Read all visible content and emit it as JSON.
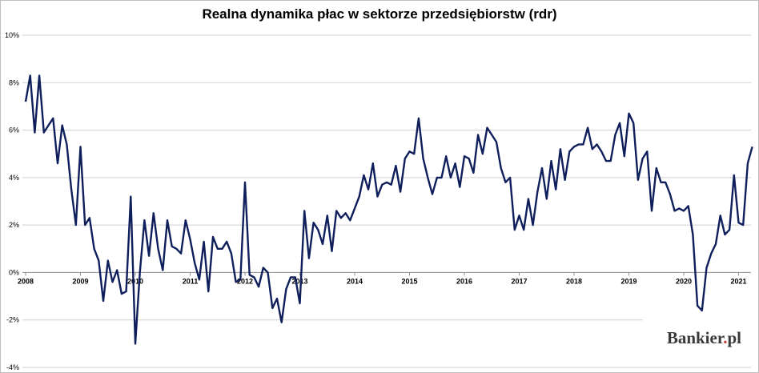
{
  "chart_data": {
    "type": "line",
    "title": "Realna dynamika płac w sektorze przedsiębiorstw (rdr)",
    "xlabel": "",
    "ylabel": "",
    "ylim": [
      -4,
      10
    ],
    "y_ticks": [
      "10%",
      "8%",
      "6%",
      "4%",
      "2%",
      "0%",
      "-2%",
      "-4%"
    ],
    "y_tick_values": [
      10,
      8,
      6,
      4,
      2,
      0,
      -2,
      -4
    ],
    "x_ticks": [
      "2008",
      "2009",
      "2010",
      "2011",
      "2012",
      "2013",
      "2014",
      "2015",
      "2016",
      "2017",
      "2018",
      "2019",
      "2020",
      "2021"
    ],
    "x_start": "2008-01",
    "grid": "horizontal",
    "legend": "none",
    "line_color": "#0f1f5c",
    "series": [
      {
        "values": [
          7.2,
          8.3,
          5.9,
          8.3,
          5.9,
          6.2,
          6.5,
          4.6,
          6.2,
          5.4,
          3.5,
          2.0,
          5.3,
          2.0,
          2.3,
          1.0,
          0.5,
          -1.2,
          0.5,
          -0.4,
          0.1,
          -0.9,
          -0.8,
          3.2,
          -3.0,
          0.0,
          2.2,
          0.7,
          2.5,
          1.0,
          0.1,
          2.2,
          1.1,
          1.0,
          0.8,
          2.2,
          1.4,
          0.4,
          -0.3,
          1.3,
          -0.8,
          1.5,
          1.0,
          1.0,
          1.3,
          0.8,
          -0.4,
          -0.3,
          3.8,
          -0.1,
          -0.2,
          -0.6,
          0.2,
          0.0,
          -1.5,
          -1.1,
          -2.1,
          -0.7,
          -0.2,
          -0.2,
          -1.3,
          2.6,
          0.6,
          2.1,
          1.8,
          1.2,
          2.4,
          0.9,
          2.6,
          2.3,
          2.5,
          2.2,
          2.7,
          3.2,
          4.1,
          3.5,
          4.6,
          3.2,
          3.7,
          3.8,
          3.7,
          4.5,
          3.4,
          4.8,
          5.1,
          5.0,
          6.5,
          4.8,
          4.0,
          3.3,
          4.0,
          4.0,
          4.9,
          4.0,
          4.6,
          3.6,
          4.9,
          4.8,
          4.2,
          5.8,
          5.0,
          6.1,
          5.8,
          5.5,
          4.4,
          3.8,
          4.0,
          1.8,
          2.4,
          1.8,
          3.1,
          2.0,
          3.4,
          4.4,
          3.1,
          4.7,
          3.5,
          5.2,
          3.9,
          5.1,
          5.3,
          5.4,
          5.4,
          6.1,
          5.2,
          5.4,
          5.1,
          4.7,
          4.7,
          5.8,
          6.3,
          4.9,
          6.7,
          6.3,
          3.9,
          4.8,
          5.1,
          2.6,
          4.4,
          3.8,
          3.8,
          3.3,
          2.6,
          2.7,
          2.6,
          2.8,
          1.6,
          -1.4,
          -1.6,
          0.2,
          0.8,
          1.2,
          2.4,
          1.6,
          1.8,
          4.1,
          2.1,
          2.0,
          4.6,
          5.3
        ]
      }
    ]
  },
  "watermark": {
    "text": "Bankier",
    "dot": ".",
    "suffix": "pl"
  }
}
